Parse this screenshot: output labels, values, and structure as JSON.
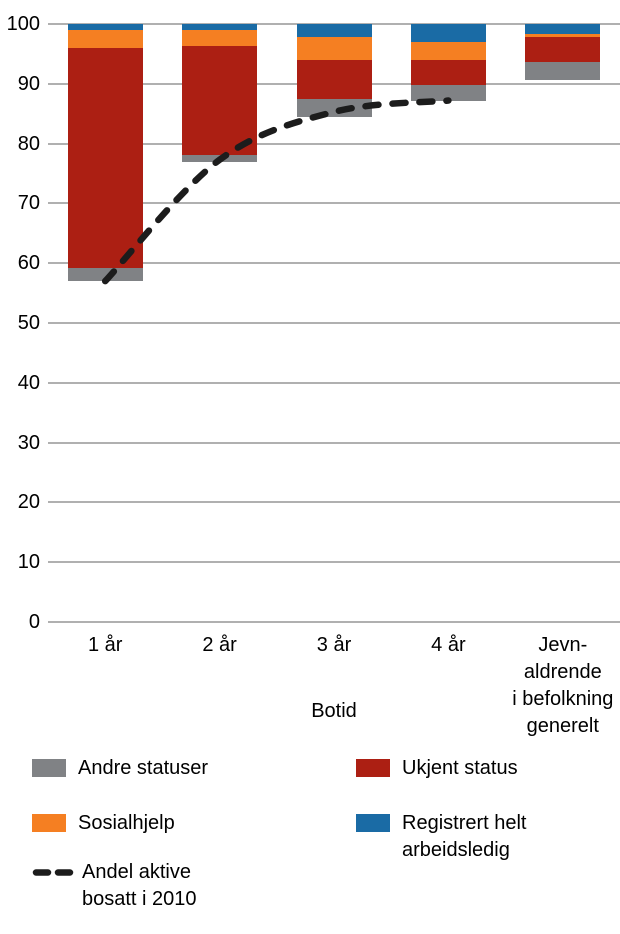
{
  "chart_data": {
    "type": "bar",
    "variant": "floating-stacked-to-100-with-dashed-line",
    "title": "",
    "xlabel": "Botid",
    "ylabel": "",
    "ylim": [
      0,
      100
    ],
    "yticks": [
      0,
      10,
      20,
      30,
      40,
      50,
      60,
      70,
      80,
      90,
      100
    ],
    "grid": true,
    "legend_position": "bottom",
    "categories": [
      "1 år",
      "2 år",
      "3 år",
      "4 år",
      "Jevnaldrende i befolkning generelt"
    ],
    "category_display_lines": [
      [
        "1 år"
      ],
      [
        "2 år"
      ],
      [
        "3 år"
      ],
      [
        "4 år"
      ],
      [
        "Jevn-",
        "aldrende",
        "i befolkning",
        "generelt"
      ]
    ],
    "stack_base_values": [
      57,
      77,
      84.5,
      87.2,
      90.6
    ],
    "series": [
      {
        "name": "Andre statuser",
        "color": "#808285",
        "values": [
          2.2,
          1.1,
          2.9,
          2.6,
          3.0
        ]
      },
      {
        "name": "Ukjent status",
        "color": "#AC1F13",
        "values": [
          36.8,
          18.2,
          6.5,
          4.1,
          4.2
        ]
      },
      {
        "name": "Sosialhjelp",
        "color": "#F57F22",
        "values": [
          3.0,
          2.7,
          4.0,
          3.1,
          0.5
        ]
      },
      {
        "name": "Registrert helt arbeidsledig",
        "color": "#1A6BA5",
        "values": [
          1.0,
          1.0,
          2.1,
          3.0,
          1.7
        ]
      }
    ],
    "line_series": {
      "name": "Andel aktive bosatt i 2010",
      "color": "#1C1C1C",
      "style": "dashed",
      "values": [
        57,
        77.3,
        85.3,
        87.2,
        null
      ]
    },
    "legend": [
      {
        "swatch": "square",
        "color": "#808285",
        "lines": [
          "Andre statuser"
        ]
      },
      {
        "swatch": "square",
        "color": "#AC1F13",
        "lines": [
          "Ukjent status"
        ]
      },
      {
        "swatch": "square",
        "color": "#F57F22",
        "lines": [
          "Sosialhjelp"
        ]
      },
      {
        "swatch": "square",
        "color": "#1A6BA5",
        "lines": [
          "Registrert helt",
          "arbeidsledig"
        ]
      },
      {
        "swatch": "dash",
        "color": "#1C1C1C",
        "lines": [
          "Andel aktive",
          "bosatt i 2010"
        ]
      }
    ],
    "colors": {
      "gridline": "#B0B0B0",
      "text": "#000000",
      "background": "#FFFFFF"
    }
  }
}
